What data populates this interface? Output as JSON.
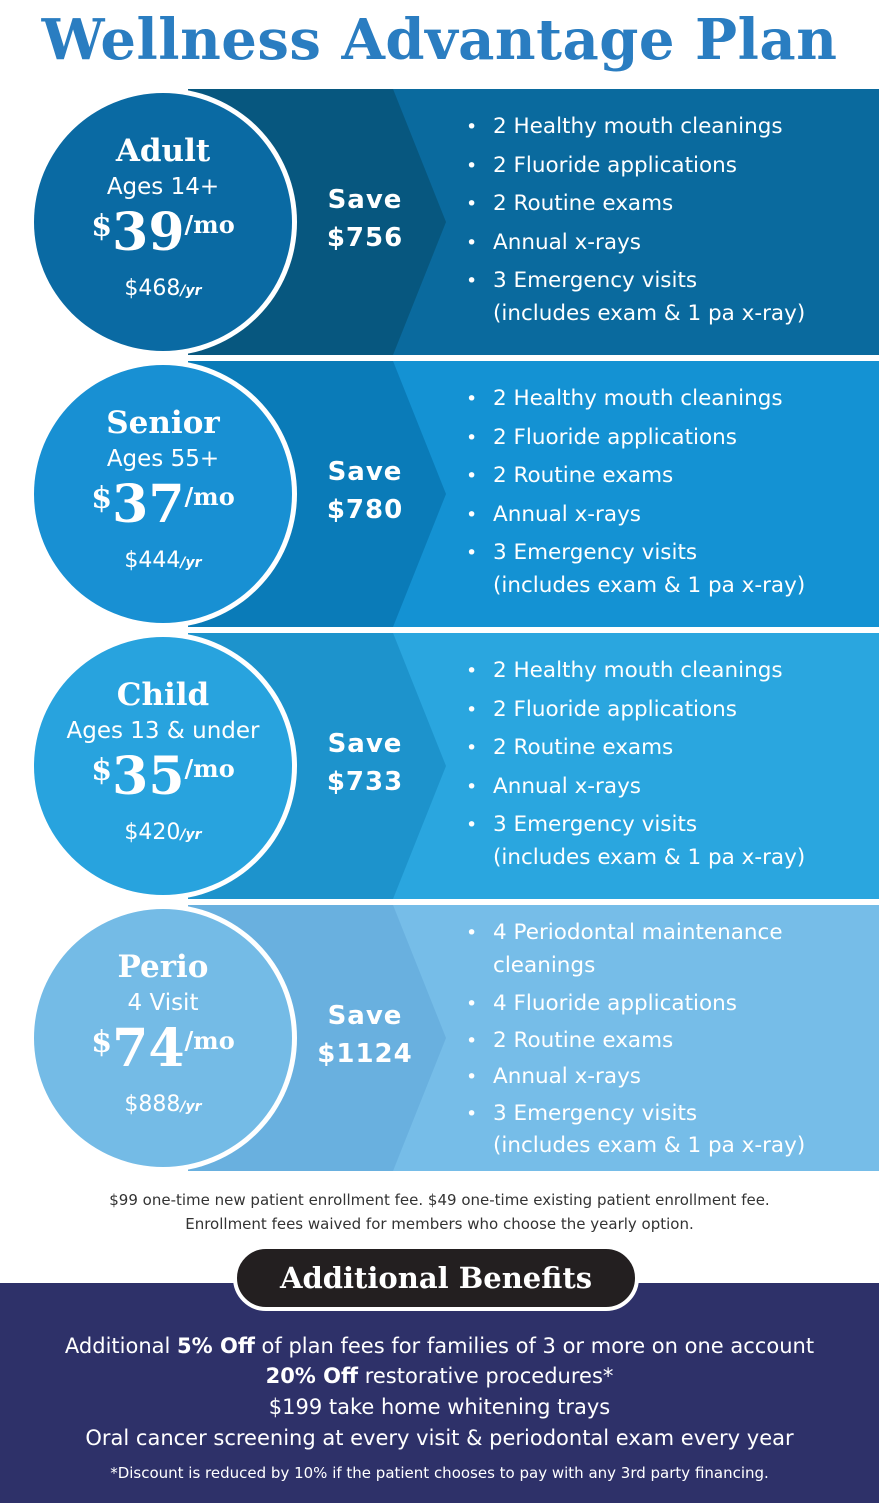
{
  "title": "Wellness Advantage Plan",
  "plans": [
    {
      "name": "Adult",
      "ages": "Ages 14+",
      "currency": "$",
      "monthly": "39",
      "per_month": "/mo",
      "yearly": "$468",
      "per_year": "/yr",
      "save_label": "Save",
      "save_amount": "$756",
      "benefits": [
        "2  Healthy mouth cleanings",
        "2 Fluoride applications",
        "2 Routine exams",
        "Annual x-rays",
        "3 Emergency visits",
        "(includes exam & 1 pa x-ray)"
      ],
      "colors": {
        "band": "#0a6a9e",
        "arrow": "#07577f",
        "circle": "#0a6aa3"
      }
    },
    {
      "name": "Senior",
      "ages": "Ages 55+",
      "currency": "$",
      "monthly": "37",
      "per_month": "/mo",
      "yearly": "$444",
      "per_year": "/yr",
      "save_label": "Save",
      "save_amount": "$780",
      "benefits": [
        "2  Healthy mouth cleanings",
        "2 Fluoride applications",
        "2 Routine exams",
        "Annual x-rays",
        "3 Emergency visits",
        "(includes exam & 1 pa x-ray)"
      ],
      "colors": {
        "band": "#1492d3",
        "arrow": "#0a7bb8",
        "circle": "#1890d3"
      }
    },
    {
      "name": "Child",
      "ages": "Ages 13 & under",
      "currency": "$",
      "monthly": "35",
      "per_month": "/mo",
      "yearly": "$420",
      "per_year": "/yr",
      "save_label": "Save",
      "save_amount": "$733",
      "benefits": [
        "2 Healthy mouth cleanings",
        "2 Fluoride applications",
        "2 Routine exams",
        "Annual x-rays",
        "3 Emergency visits",
        "(includes exam & 1 pa x-ray)"
      ],
      "colors": {
        "band": "#2aa6df",
        "arrow": "#1d93cc",
        "circle": "#28a3de"
      }
    },
    {
      "name": "Perio",
      "ages": "4 Visit",
      "currency": "$",
      "monthly": "74",
      "per_month": "/mo",
      "yearly": "$888",
      "per_year": "/yr",
      "save_label": "Save",
      "save_amount": "$1124",
      "benefits": [
        "4 Periodontal maintenance",
        "cleanings",
        "4 Fluoride applications",
        "2 Routine exams",
        "Annual x-rays",
        "3 Emergency visits",
        "(includes exam & 1 pa x-ray)"
      ],
      "colors": {
        "band": "#76bde8",
        "arrow": "#69b0df",
        "circle": "#74bbe6"
      }
    }
  ],
  "enrollment_note": {
    "line1": "$99 one-time new patient enrollment fee. $49 one-time existing patient enrollment fee.",
    "line2": "Enrollment fees waived for members who choose the yearly option."
  },
  "additional": {
    "heading": "Additional Benefits",
    "line1_pre": "Additional ",
    "line1_bold": "5% Off",
    "line1_post": " of plan fees for families of 3 or more on one account",
    "line2_bold": "20% Off",
    "line2_post": " restorative procedures*",
    "line3": "$199 take home whitening trays",
    "line4": "Oral cancer screening at every visit & periodontal exam every year",
    "footnote": "*Discount is reduced by 10% if the patient chooses to pay with any 3rd party financing."
  }
}
